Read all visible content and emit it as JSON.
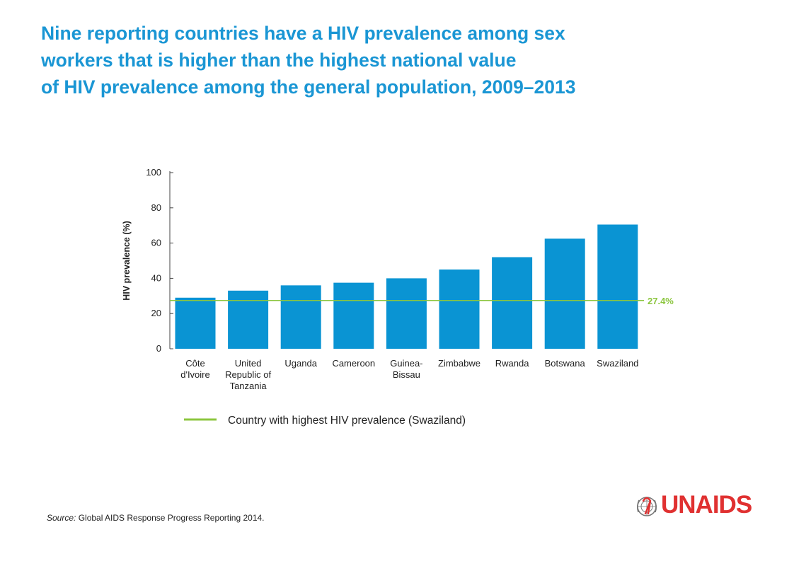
{
  "title_lines": [
    "Nine reporting countries have a HIV prevalence among sex",
    "workers that is higher than the highest national value",
    "of HIV prevalence among the general population, 2009–2013"
  ],
  "source": {
    "label": "Source:",
    "text": " Global AIDS Response Progress Reporting 2014."
  },
  "logo": {
    "text": "UNAIDS"
  },
  "colors": {
    "title": "#1a96d4",
    "bar": "#0a94d3",
    "reference_line": "#8cc63f",
    "logo": "#e03131"
  },
  "chart_data": {
    "type": "bar",
    "ylabel": "HIV prevalence (%)",
    "xlabel": "",
    "ylim": [
      0,
      100
    ],
    "yticks": [
      0,
      20,
      40,
      60,
      80,
      100
    ],
    "grid": false,
    "categories": [
      [
        "Côte",
        "d'Ivoire"
      ],
      [
        "United",
        "Republic of",
        "Tanzania"
      ],
      [
        "Uganda"
      ],
      [
        "Cameroon"
      ],
      [
        "Guinea-",
        "Bissau"
      ],
      [
        "Zimbabwe"
      ],
      [
        "Rwanda"
      ],
      [
        "Botswana"
      ],
      [
        "Swaziland"
      ]
    ],
    "values": [
      29,
      33,
      36,
      37.5,
      40,
      45,
      52,
      62.5,
      70.5
    ],
    "reference_line": {
      "value": 27.4,
      "label": "27.4%"
    },
    "legend": {
      "placement": "bottom",
      "entries": [
        {
          "label": "Country with highest HIV prevalence (Swaziland)",
          "kind": "line"
        }
      ]
    }
  }
}
